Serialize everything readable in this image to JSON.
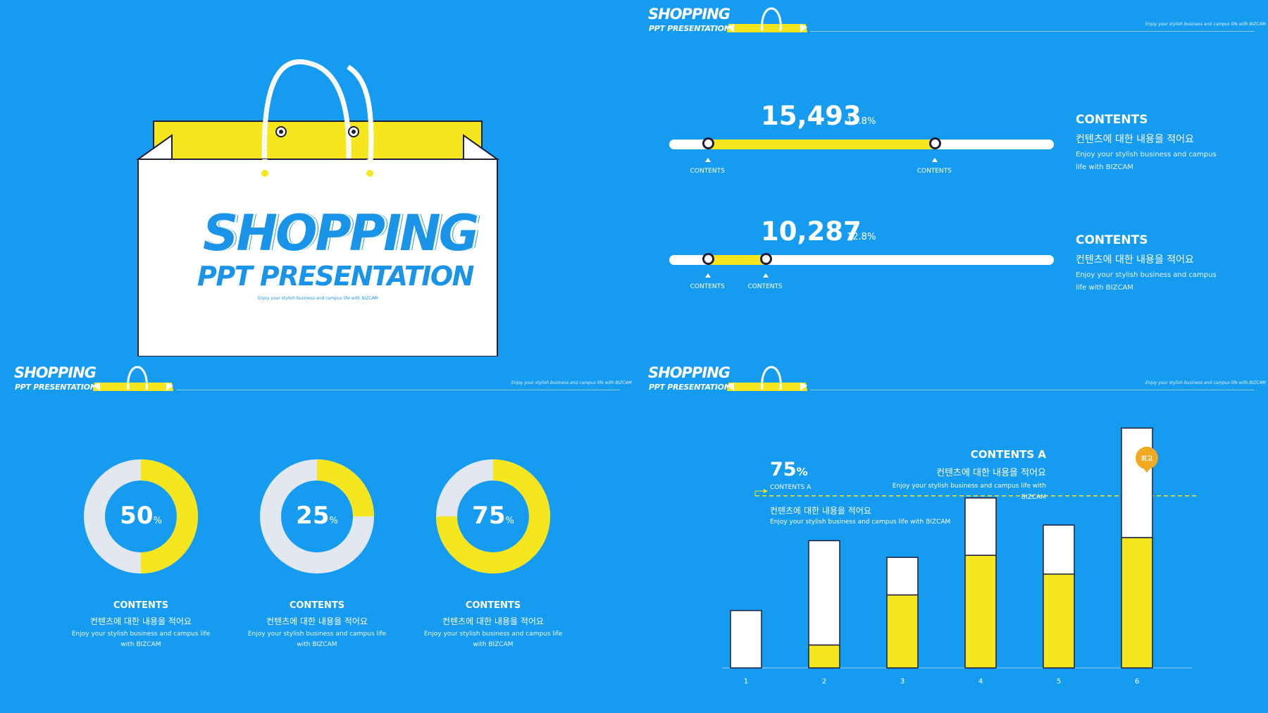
{
  "brand": {
    "title": "SHOPPING",
    "subtitle": "PPT PRESENTATION",
    "tagline": "Enjoy your stylish business and campus life with BIZCAM"
  },
  "colors": {
    "background": "#159bf0",
    "accent": "#f5e61e",
    "white": "#ffffff",
    "donut_rest": "#e3e8f0",
    "marker": "#f0a920"
  },
  "progress_slide": {
    "rows": [
      {
        "value": "15,493",
        "percent": "12.8%",
        "start_label": "CONTENTS",
        "end_label": "CONTENTS",
        "fill_start": 0.1,
        "fill_end": 0.69,
        "side_title": "CONTENTS",
        "side_korean": "컨텐츠에 대한 내용을 적어요",
        "side_desc": "Enjoy your stylish business and campus life with BIZCAM"
      },
      {
        "value": "10,287",
        "percent": "12.8%",
        "start_label": "CONTENTS",
        "end_label": "CONTENTS",
        "fill_start": 0.1,
        "fill_end": 0.25,
        "side_title": "CONTENTS",
        "side_korean": "컨텐츠에 대한 내용을 적어요",
        "side_desc": "Enjoy your stylish business and campus life with BIZCAM"
      }
    ]
  },
  "donut_slide": {
    "items": [
      {
        "percent": 50,
        "number": "50",
        "unit": "%",
        "title": "CONTENTS",
        "korean": "컨텐츠에 대한 내용을 적어요",
        "desc": "Enjoy your stylish business and campus life with BIZCAM"
      },
      {
        "percent": 25,
        "number": "25",
        "unit": "%",
        "title": "CONTENTS",
        "korean": "컨텐츠에 대한 내용을 적어요",
        "desc": "Enjoy your stylish business and campus life with BIZCAM"
      },
      {
        "percent": 75,
        "number": "75",
        "unit": "%",
        "title": "CONTENTS",
        "korean": "컨텐츠에 대한 내용을 적어요",
        "desc": "Enjoy your stylish business and campus life with BIZCAM"
      }
    ]
  },
  "bar_slide": {
    "left_note": {
      "number": "75",
      "unit": "%",
      "label": "CONTENTS A",
      "korean": "컨텐츠에 대한 내용을 적어요",
      "desc": "Enjoy your stylish business and campus life with BIZCAM"
    },
    "right_note": {
      "title": "CONTENTS A",
      "korean": "컨텐츠에 대한 내용을 적어요",
      "desc": "Enjoy your stylish business and campus life with BIZCAM"
    },
    "marker_label": "최고"
  },
  "chart_data": {
    "type": "bar",
    "categories": [
      "1",
      "2",
      "3",
      "4",
      "5",
      "6"
    ],
    "series": [
      {
        "values": [
          0,
          22,
          70,
          108,
          90,
          125
        ]
      },
      {
        "values": [
          55,
          100,
          36,
          55,
          47,
          105
        ]
      }
    ],
    "stacked": true,
    "threshold": 165,
    "ylim": [
      0,
      250
    ],
    "grid": false
  }
}
